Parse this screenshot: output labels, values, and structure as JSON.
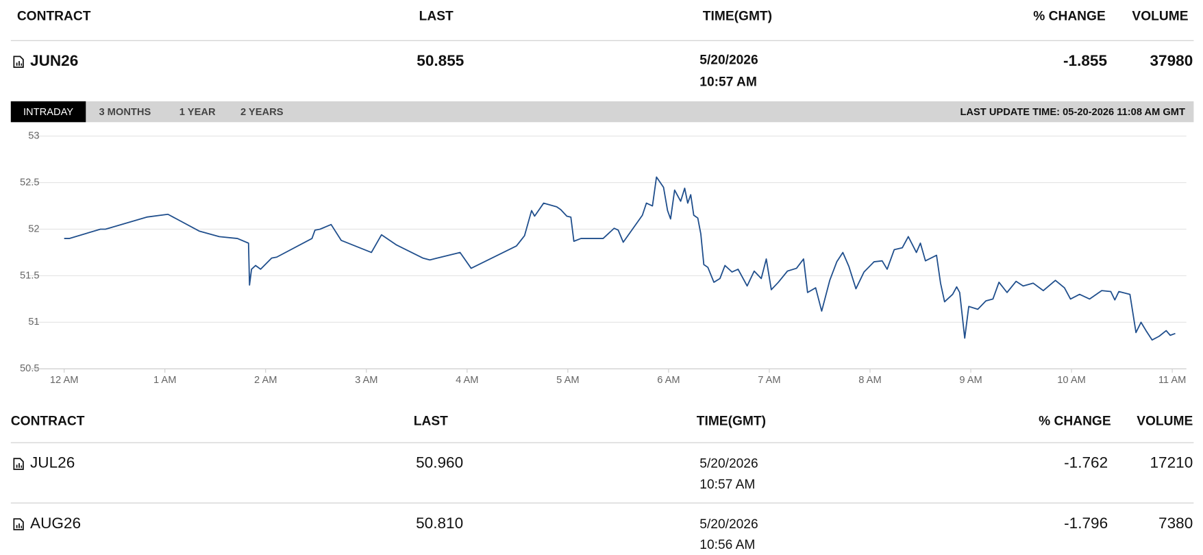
{
  "top_table": {
    "columns": [
      "CONTRACT",
      "LAST",
      "TIME(GMT)",
      "% CHANGE",
      "VOLUME"
    ],
    "row": [
      "JUN26",
      "50.855",
      "5/20/2026",
      "10:57 AM",
      "-1.855",
      "37980"
    ]
  },
  "tabs": [
    "INTRADAY",
    "3 MONTHS",
    "1 YEAR",
    "2 YEARS"
  ],
  "last_update": "LAST UPDATE TIME: 05-20-2026 11:08 AM GMT",
  "chart_data": {
    "type": "line",
    "grid": true,
    "xlim": [
      -0.35,
      11.14
    ],
    "ylim": [
      50.5,
      53
    ],
    "xticks": [
      {
        "value": 0,
        "label": "12 AM"
      },
      {
        "value": 1,
        "label": "1 AM"
      },
      {
        "value": 2,
        "label": "2 AM"
      },
      {
        "value": 3,
        "label": "3 AM"
      },
      {
        "value": 4,
        "label": "4 AM"
      },
      {
        "value": 5,
        "label": "5 AM"
      },
      {
        "value": 6,
        "label": "6 AM"
      },
      {
        "value": 7,
        "label": "7 AM"
      },
      {
        "value": 8,
        "label": "8 AM"
      },
      {
        "value": 9,
        "label": "9 AM"
      },
      {
        "value": 10,
        "label": "10 AM"
      },
      {
        "value": 11,
        "label": "11 AM"
      }
    ],
    "yticks": [
      50.5,
      51,
      51.5,
      52,
      52.5,
      53
    ],
    "x": [
      0,
      0.05,
      0.36,
      0.41,
      0.82,
      1.03,
      1.34,
      1.54,
      1.72,
      1.83,
      1.84,
      1.86,
      1.9,
      1.95,
      2.06,
      2.11,
      2.46,
      2.49,
      2.54,
      2.65,
      2.75,
      3.05,
      3.15,
      3.3,
      3.56,
      3.63,
      3.93,
      4.04,
      4.49,
      4.57,
      4.64,
      4.67,
      4.76,
      4.89,
      4.93,
      4.99,
      5.03,
      5.06,
      5.13,
      5.35,
      5.46,
      5.5,
      5.55,
      5.74,
      5.78,
      5.84,
      5.88,
      5.95,
      5.99,
      6.02,
      6.06,
      6.12,
      6.16,
      6.19,
      6.22,
      6.25,
      6.29,
      6.32,
      6.35,
      6.39,
      6.45,
      6.51,
      6.56,
      6.63,
      6.69,
      6.78,
      6.85,
      6.92,
      6.97,
      7.02,
      7.09,
      7.18,
      7.27,
      7.34,
      7.38,
      7.46,
      7.52,
      7.6,
      7.67,
      7.73,
      7.79,
      7.86,
      7.94,
      8.04,
      8.12,
      8.17,
      8.24,
      8.32,
      8.38,
      8.46,
      8.5,
      8.55,
      8.66,
      8.7,
      8.74,
      8.82,
      8.86,
      8.89,
      8.94,
      8.98,
      9.07,
      9.15,
      9.22,
      9.28,
      9.36,
      9.45,
      9.52,
      9.62,
      9.72,
      9.84,
      9.93,
      9.99,
      10.08,
      10.18,
      10.3,
      10.39,
      10.43,
      10.47,
      10.58,
      10.64,
      10.69,
      10.74,
      10.8,
      10.87,
      10.94,
      10.98,
      11.03
    ],
    "series": [
      {
        "color": "#1f4e8c",
        "values": [
          51.9,
          51.9,
          52.0,
          52.0,
          52.13,
          52.16,
          51.98,
          51.92,
          51.9,
          51.85,
          51.4,
          51.57,
          51.61,
          51.57,
          51.69,
          51.7,
          51.9,
          51.99,
          52.0,
          52.05,
          51.88,
          51.75,
          51.94,
          51.83,
          51.69,
          51.67,
          51.75,
          51.58,
          51.82,
          51.93,
          52.2,
          52.14,
          52.28,
          52.24,
          52.21,
          52.14,
          52.13,
          51.87,
          51.9,
          51.9,
          52.01,
          51.99,
          51.86,
          52.15,
          52.28,
          52.25,
          52.56,
          52.45,
          52.2,
          52.11,
          52.42,
          52.3,
          52.44,
          52.28,
          52.37,
          52.15,
          52.12,
          51.95,
          51.62,
          51.59,
          51.43,
          51.47,
          51.61,
          51.54,
          51.57,
          51.39,
          51.55,
          51.47,
          51.68,
          51.35,
          51.43,
          51.55,
          51.58,
          51.68,
          51.32,
          51.37,
          51.12,
          51.45,
          51.65,
          51.75,
          51.6,
          51.36,
          51.54,
          51.65,
          51.66,
          51.57,
          51.78,
          51.8,
          51.92,
          51.75,
          51.85,
          51.66,
          51.72,
          51.42,
          51.22,
          51.3,
          51.38,
          51.32,
          50.83,
          51.17,
          51.14,
          51.23,
          51.25,
          51.43,
          51.32,
          51.44,
          51.39,
          51.42,
          51.34,
          51.45,
          51.37,
          51.25,
          51.3,
          51.25,
          51.34,
          51.33,
          51.24,
          51.33,
          51.3,
          50.89,
          51.0,
          50.91,
          50.81,
          50.85,
          50.91,
          50.86,
          50.88
        ]
      }
    ]
  },
  "bottom_table": {
    "columns": [
      "CONTRACT",
      "LAST",
      "TIME(GMT)",
      "% CHANGE",
      "VOLUME"
    ],
    "rows": [
      [
        "JUL26",
        "50.960",
        "5/20/2026",
        "10:57 AM",
        "-1.762",
        "17210"
      ],
      [
        "AUG26",
        "50.810",
        "5/20/2026",
        "10:56 AM",
        "-1.796",
        "7380"
      ]
    ]
  }
}
